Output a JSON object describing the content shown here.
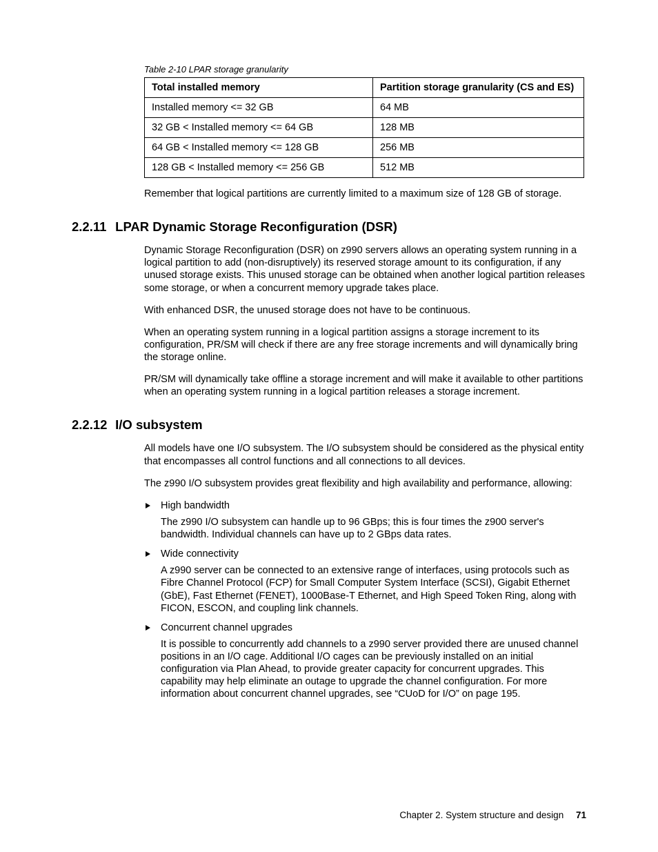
{
  "table": {
    "caption": "Table 2-10   LPAR storage granularity",
    "headers": [
      "Total installed memory",
      "Partition storage granularity (CS and ES)"
    ],
    "rows": [
      [
        "Installed memory <= 32 GB",
        "64 MB"
      ],
      [
        "32 GB < Installed memory <= 64 GB",
        "128 MB"
      ],
      [
        "64 GB < Installed memory <= 128 GB",
        "256 MB"
      ],
      [
        "128 GB < Installed memory <= 256 GB",
        "512 MB"
      ]
    ]
  },
  "post_table_note": "Remember that logical partitions are currently limited to a maximum size of 128 GB of storage.",
  "section1": {
    "number": "2.2.11",
    "title": "LPAR Dynamic Storage Reconfiguration (DSR)",
    "paragraphs": [
      "Dynamic Storage Reconfiguration (DSR) on z990 servers allows an operating system running in a logical partition to add (non-disruptively) its reserved storage amount to its configuration, if any unused storage exists. This unused storage can be obtained when another logical partition releases some storage, or when a concurrent memory upgrade takes place.",
      "With enhanced DSR, the unused storage does not have to be continuous.",
      "When an operating system running in a logical partition assigns a storage increment to its configuration, PR/SM will check if there are any free storage increments and will dynamically bring the storage online.",
      "PR/SM will dynamically take offline a storage increment and will make it available to other partitions when an operating system running in a logical partition releases a storage increment."
    ]
  },
  "section2": {
    "number": "2.2.12",
    "title": "I/O subsystem",
    "intro": [
      "All models have one I/O subsystem. The I/O subsystem should be considered as the physical entity that encompasses all control functions and all connections to all devices.",
      "The z990 I/O subsystem provides great flexibility and high availability and performance, allowing:"
    ],
    "bullets": [
      {
        "title": "High bandwidth",
        "body": "The z990 I/O subsystem can handle up to 96 GBps; this is four times the z900 server's bandwidth. Individual channels can have up to 2 GBps data rates."
      },
      {
        "title": "Wide connectivity",
        "body": "A z990 server can be connected to an extensive range of interfaces, using protocols such as Fibre Channel Protocol (FCP) for Small Computer System Interface (SCSI), Gigabit Ethernet (GbE), Fast Ethernet (FENET), 1000Base-T Ethernet, and High Speed Token Ring, along with FICON, ESCON, and coupling link channels."
      },
      {
        "title": "Concurrent channel upgrades",
        "body": "It is possible to concurrently add channels to a z990 server provided there are unused channel positions in an I/O cage. Additional I/O cages can be previously installed on an initial configuration via Plan Ahead, to provide greater capacity for concurrent upgrades. This capability may help eliminate an outage to upgrade the channel configuration. For more information about concurrent channel upgrades, see “CUoD for I/O” on page 195."
      }
    ]
  },
  "footer": {
    "chapter": "Chapter 2. System structure and design",
    "page": "71"
  }
}
